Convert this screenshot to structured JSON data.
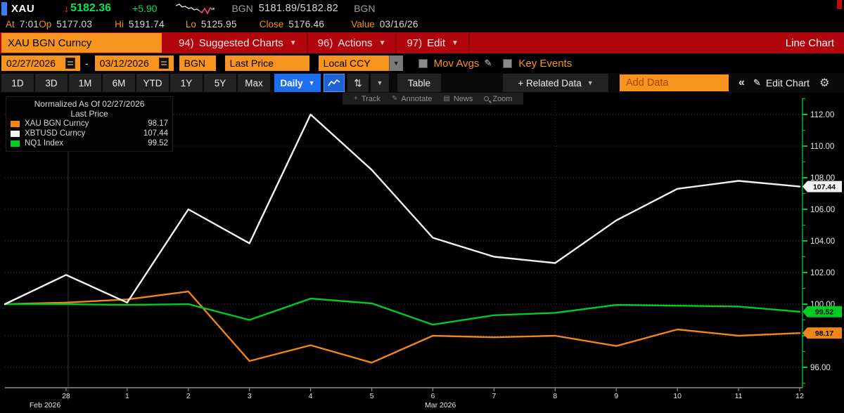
{
  "quote_bar": {
    "ticker": "XAU",
    "arrow": "↓",
    "last": "5182.36",
    "change": "+5.90",
    "bid_label": "BGN",
    "bid_ask": "5181.89/5182.82",
    "ask_label": "BGN",
    "stats": [
      {
        "label": "At",
        "value": "7:01"
      },
      {
        "label": "Op",
        "value": "5177.03"
      },
      {
        "label": "Hi",
        "value": "5191.74"
      },
      {
        "label": "Lo",
        "value": "5125.95"
      },
      {
        "label": "Close",
        "value": "5176.46"
      },
      {
        "label": "Value",
        "value": "03/16/26"
      }
    ]
  },
  "menu_bar": {
    "security": "XAU BGN Curncy",
    "items": [
      {
        "num": "94)",
        "label": "Suggested Charts",
        "dropdown": true
      },
      {
        "num": "96)",
        "label": "Actions",
        "dropdown": true
      },
      {
        "num": "97)",
        "label": "Edit",
        "dropdown": true
      }
    ],
    "right_label": "Line Chart"
  },
  "settings_bar": {
    "date_from": "02/27/2026",
    "separator": "-",
    "date_to": "03/12/2026",
    "source": "BGN",
    "price_field": "Last Price",
    "currency": "Local CCY",
    "mov_avgs_label": "Mov Avgs",
    "key_events_label": "Key Events"
  },
  "period_bar": {
    "periods": [
      "1D",
      "3D",
      "1M",
      "6M",
      "YTD",
      "1Y",
      "5Y",
      "Max"
    ],
    "frequency": "Daily",
    "table_label": "Table",
    "related_data_label": "+ Related Data",
    "add_data_placeholder": "Add Data",
    "collapse_label": "«",
    "edit_chart_label": "Edit Chart"
  },
  "chart_tools": [
    {
      "icon": "crosshair-icon",
      "label": "Track"
    },
    {
      "icon": "pencil-icon",
      "label": "Annotate"
    },
    {
      "icon": "news-icon",
      "label": "News"
    },
    {
      "icon": "zoom-icon",
      "label": "Zoom"
    }
  ],
  "legend": {
    "title": "Normalized As Of 02/27/2026",
    "subtitle": "Last Price"
  },
  "chart_data": {
    "type": "line",
    "x_labels": [
      "",
      "28",
      "1",
      "2",
      "3",
      "4",
      "5",
      "6",
      "7",
      "8",
      "9",
      "10",
      "11",
      "12"
    ],
    "month_labels": [
      "Feb 2026",
      "Mar 2026"
    ],
    "series": [
      {
        "name": "XAU BGN Curncy",
        "color": "#f0861a",
        "last_label": "98.17",
        "values": [
          100.0,
          100.1,
          100.3,
          100.8,
          96.4,
          97.4,
          96.3,
          98.0,
          97.9,
          98.0,
          97.35,
          98.4,
          98.0,
          98.17
        ]
      },
      {
        "name": "XBTUSD Curncy",
        "color": "#f2f2f2",
        "last_label": "107.44",
        "values": [
          100.0,
          101.85,
          100.1,
          106.0,
          103.85,
          112.0,
          108.5,
          104.2,
          103.0,
          102.6,
          105.3,
          107.3,
          107.8,
          107.44
        ]
      },
      {
        "name": "NQ1 Index",
        "color": "#00cc22",
        "last_label": "99.52",
        "values": [
          100.0,
          100.0,
          99.95,
          100.0,
          99.0,
          100.35,
          100.05,
          98.7,
          99.3,
          99.45,
          99.95,
          99.9,
          99.85,
          99.52
        ]
      }
    ],
    "draw_order": [
      0,
      2,
      1
    ],
    "ylim": [
      94.7,
      113.0
    ],
    "y_gridlines": [
      96,
      98,
      100,
      102,
      104,
      106,
      108,
      110,
      112
    ],
    "y_labeled": [
      96,
      100,
      102,
      104,
      106,
      108,
      110,
      112
    ],
    "grid": true,
    "legend_position": "top-left",
    "axis_color": "#00a82d"
  }
}
